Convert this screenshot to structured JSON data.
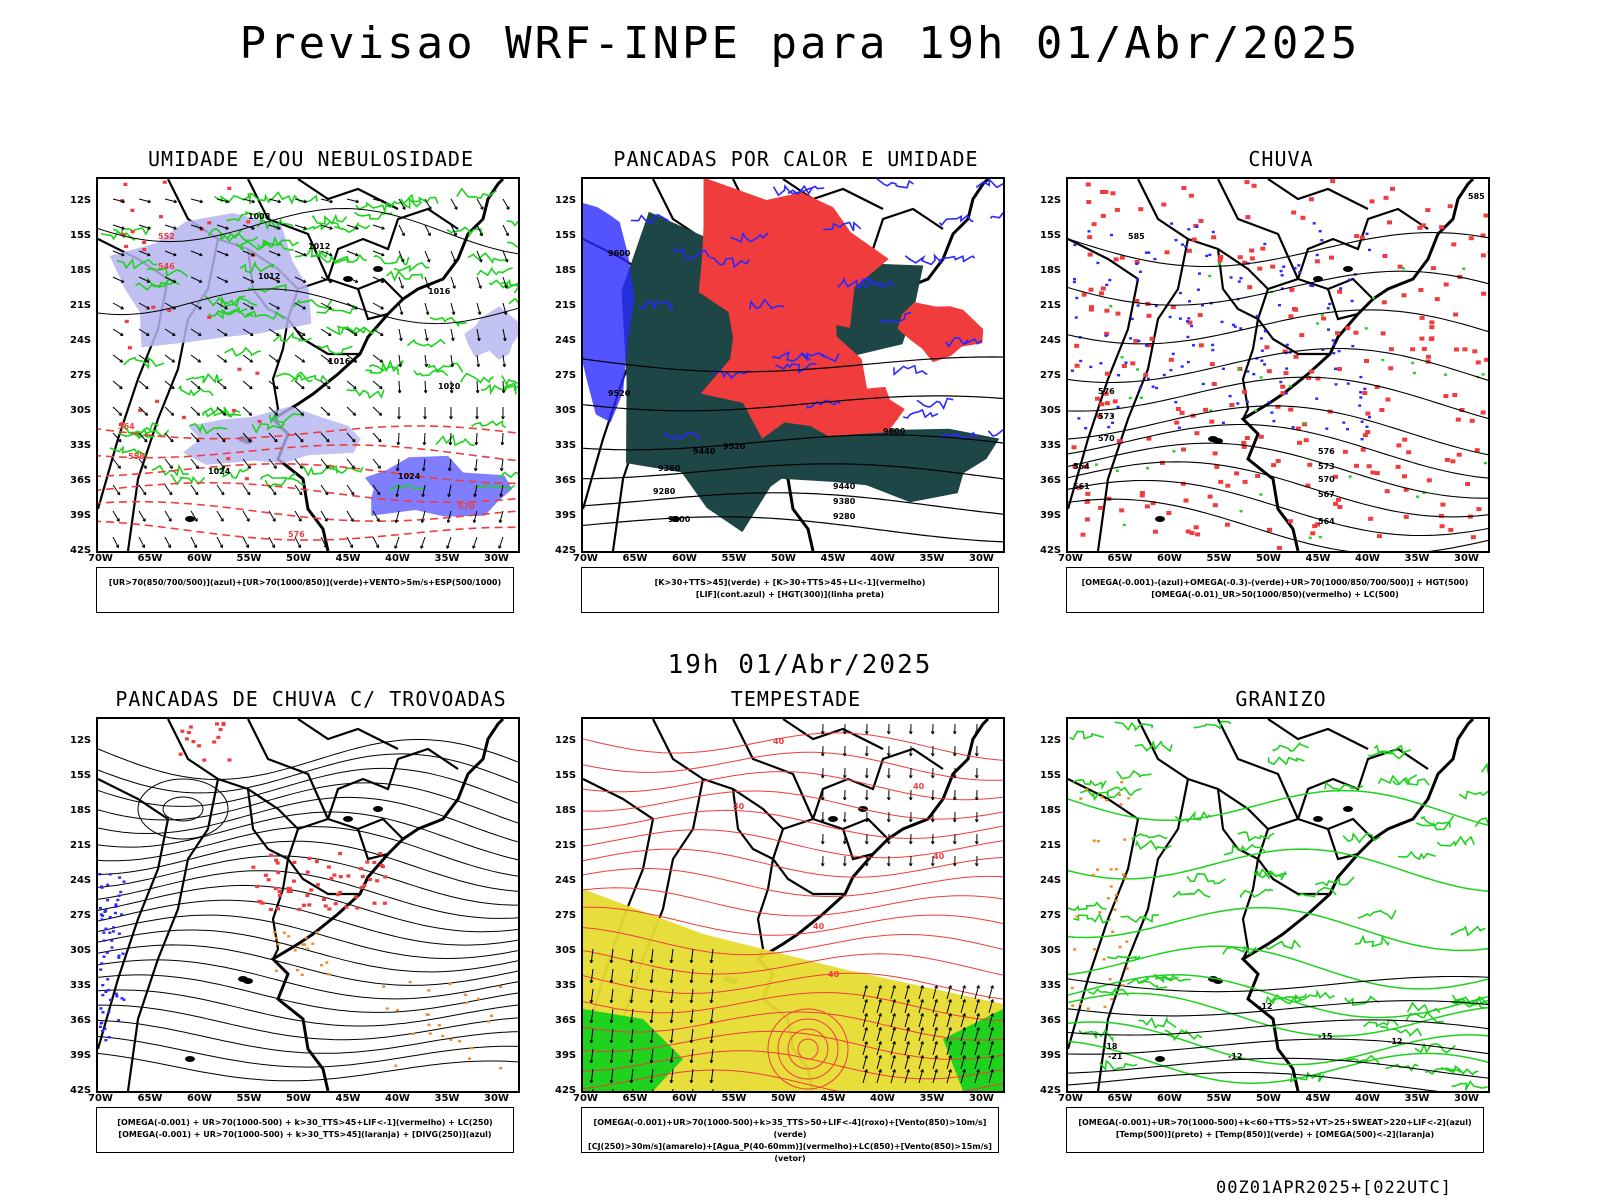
{
  "title": "Previsao WRF-INPE  para 19h 01/Abr/2025",
  "mid_title": "19h 01/Abr/2025",
  "footer": "00Z01APR2025+[022UTC]",
  "lat_labels": [
    "12S",
    "15S",
    "18S",
    "21S",
    "24S",
    "27S",
    "30S",
    "33S",
    "36S",
    "39S",
    "42S"
  ],
  "lon_labels": [
    "70W",
    "65W",
    "60W",
    "55W",
    "50W",
    "45W",
    "40W",
    "35W",
    "30W"
  ],
  "colors": {
    "lavender": "#b4b4f0",
    "blue": "#2828ff",
    "green": "#1ed21e",
    "red": "#f03c3c",
    "dark_teal": "#1e4646",
    "yellow": "#e6dc32",
    "orange": "#eb8c28",
    "black": "#000000"
  },
  "panels": [
    {
      "title": "UMIDADE E/OU NEBULOSIDADE",
      "legend1": "[UR>70(850/700/500)](azul)+[UR>70(1000/850)](verde)+VENTO>5m/s+ESP(500/1000)",
      "legend2": "",
      "contour_labels": [
        "1008",
        "1012",
        "1012",
        "1016",
        "1016",
        "1020",
        "1024",
        "1024",
        "576",
        "570",
        "564",
        "558",
        "552",
        "546"
      ]
    },
    {
      "title": "PANCADAS POR CALOR E UMIDADE",
      "legend1": "[K>30+TTS>45](verde) + [K>30+TTS>45+LI<-1](vermelho)",
      "legend2": "[LIF](cont.azul) + [HGT(300)](linha preta)",
      "contour_labels": [
        "9600",
        "9520",
        "9440",
        "9360",
        "9280",
        "9200",
        "9520",
        "9440",
        "9380",
        "9280",
        "9600"
      ]
    },
    {
      "title": "CHUVA",
      "legend1": "[OMEGA(-0.001)-(azul)+OMEGA(-0.3)-(verde)+UR>70(1000/850/700/500)] + HGT(500)",
      "legend2": "[OMEGA(-0.01)_UR>50(1000/850)(vermelho) + LC(500)",
      "contour_labels": [
        "585",
        "585",
        "576",
        "573",
        "570",
        "564",
        "561",
        "576",
        "573",
        "570",
        "567",
        "564"
      ]
    },
    {
      "title": "PANCADAS DE CHUVA C/ TROVOADAS",
      "legend1": "[OMEGA(-0.001) + UR>70(1000-500) + k>30_TTS>45+LIF<-1](vermelho) + LC(250)",
      "legend2": "[OMEGA(-0.001) + UR>70(1000-500) + k>30_TTS>45](laranja) + [DIVG(250)](azul)",
      "contour_labels": []
    },
    {
      "title": "TEMPESTADE",
      "legend1": "[OMEGA(-0.001)+UR>70(1000-500)+k>35_TTS>50+LIF<-4](roxo)+[Vento(850)>10m/s](verde)",
      "legend2": "[CJ(250)>30m/s](amarelo)+[Agua_P(40-60mm)](vermelho)+LC(850)+[Vento(850)>15m/s](vetor)",
      "contour_labels": [
        "40",
        "40",
        "40",
        "40",
        "40",
        "40"
      ]
    },
    {
      "title": "GRANIZO",
      "legend1": "[OMEGA(-0.001)+UR>70(1000-500)+k<60+TTS>52+VT>25+SWEAT>220+LIF<-2](azul)",
      "legend2": "[Temp(500)](preto) + [Temp(850)](verde) + [OMEGA(500)<-2](laranja)",
      "contour_labels": [
        "-12",
        "-15",
        "-12",
        "-18",
        "-21",
        "-12"
      ]
    }
  ]
}
